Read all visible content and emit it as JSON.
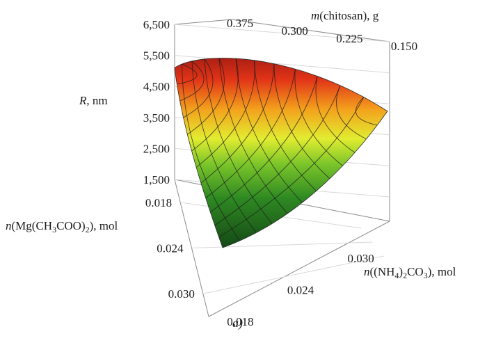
{
  "chart_data": {
    "type": "surface3d",
    "caption": "a)",
    "z_axis": {
      "label_main": "R",
      "label_unit": ", nm",
      "ticks": [
        "1,500",
        "2,500",
        "3,500",
        "4,500",
        "5,500",
        "6,500"
      ],
      "range": [
        1500,
        6500
      ]
    },
    "top_axis": {
      "label_main": "m",
      "label_rest": "(chitosan), g",
      "ticks": [
        "0.375",
        "0.300",
        "0.225",
        "0.150"
      ],
      "range": [
        0.15,
        0.375
      ]
    },
    "left_axis": {
      "label_pre": "n(Mg(CH",
      "label_sub1": "3",
      "label_mid": "COO)",
      "label_sub2": "2",
      "label_post": "), mol",
      "ticks": [
        "0.018",
        "0.024",
        "0.030"
      ],
      "range": [
        0.015,
        0.033
      ]
    },
    "right_axis": {
      "label_pre": "n((NH",
      "label_sub1": "4",
      "label_mid": ")",
      "label_sub2": "2",
      "label_mid2": "CO",
      "label_sub3": "3",
      "label_post": "), mol",
      "ticks": [
        "0.018",
        "0.024",
        "0.030"
      ],
      "range": [
        0.015,
        0.033
      ]
    },
    "surface": {
      "colormap": [
        "#0f3d14",
        "#2f8a22",
        "#7cc62a",
        "#e2ec30",
        "#f3a11c",
        "#e23418",
        "#8f1310"
      ],
      "value_range": [
        1500,
        5800
      ],
      "apex_value": 5800,
      "bottom_value": 1600,
      "right_edge_value": 3700,
      "left_edge_value": 5100
    }
  }
}
